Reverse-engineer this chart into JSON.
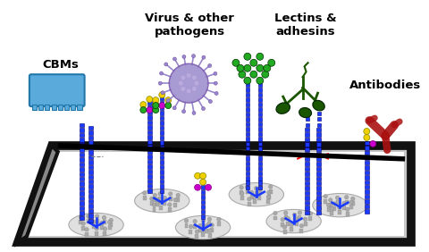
{
  "labels": {
    "virus": "Virus & other\npathogens",
    "lectins": "Lectins &\nadhesins",
    "cbms": "CBMs",
    "antibodies": "Antibodies"
  },
  "background_color": "#ffffff",
  "platform_color": "#111111",
  "blue_color": "#1a3aff",
  "green_color": "#22aa22",
  "yellow_color": "#f0d000",
  "magenta_color": "#cc00cc",
  "red_color": "#aa1111",
  "cbm_color": "#5aabdc",
  "virus_color": "#9988cc",
  "lectin_color": "#1a5500"
}
